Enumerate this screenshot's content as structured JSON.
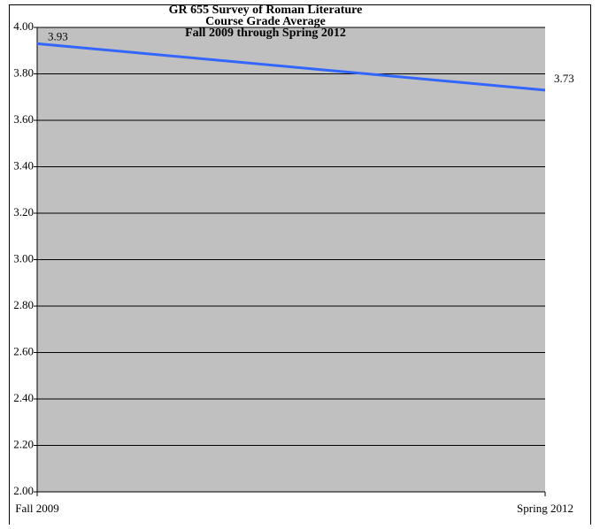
{
  "chart_data": {
    "type": "line",
    "title": [
      "GR 655 Survey of Roman Literature",
      "Course Grade Average",
      "Fall 2009 through Spring 2012"
    ],
    "categories": [
      "Fall 2009",
      "Spring 2012"
    ],
    "series": [
      {
        "name": "Course Grade Average",
        "color": "#3366ff",
        "values": [
          3.93,
          3.73
        ]
      }
    ],
    "ylim": [
      2.0,
      4.0
    ],
    "yticks": [
      {
        "value": 2.0,
        "label": "2.00"
      },
      {
        "value": 2.2,
        "label": "2.20"
      },
      {
        "value": 2.4,
        "label": "2.40"
      },
      {
        "value": 2.6,
        "label": "2.60"
      },
      {
        "value": 2.8,
        "label": "2.80"
      },
      {
        "value": 3.0,
        "label": "3.00"
      },
      {
        "value": 3.2,
        "label": "3.20"
      },
      {
        "value": 3.4,
        "label": "3.40"
      },
      {
        "value": 3.6,
        "label": "3.60"
      },
      {
        "value": 3.8,
        "label": "3.80"
      },
      {
        "value": 4.0,
        "label": "4.00"
      }
    ],
    "grid": true,
    "plot_color": "#c0c0c0"
  }
}
